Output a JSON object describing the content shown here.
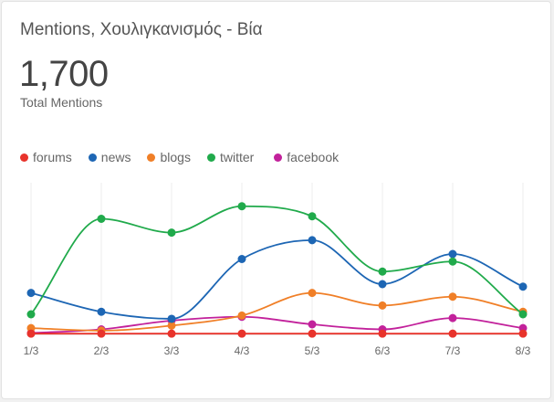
{
  "title": "Mentions, Χουλιγκανισμός - Βία",
  "total": {
    "value": "1,700",
    "label": "Total Mentions"
  },
  "chart_data": {
    "type": "line",
    "categories": [
      "1/3",
      "2/3",
      "3/3",
      "4/3",
      "5/3",
      "6/3",
      "7/3",
      "8/3"
    ],
    "ylim": [
      0,
      520
    ],
    "grid": "vertical",
    "legend": "top-left",
    "series": [
      {
        "name": "forums",
        "color": "#e8332b",
        "values": [
          3,
          3,
          3,
          3,
          3,
          3,
          3,
          3
        ]
      },
      {
        "name": "news",
        "color": "#1d66b4",
        "values": [
          165,
          90,
          62,
          300,
          375,
          200,
          320,
          190
        ]
      },
      {
        "name": "blogs",
        "color": "#f07f27",
        "values": [
          25,
          15,
          35,
          75,
          165,
          115,
          150,
          90
        ]
      },
      {
        "name": "twitter",
        "color": "#20aa4b",
        "values": [
          80,
          460,
          405,
          510,
          470,
          250,
          290,
          80
        ]
      },
      {
        "name": "facebook",
        "color": "#c2219b",
        "values": [
          5,
          20,
          55,
          70,
          40,
          20,
          65,
          25
        ]
      }
    ]
  }
}
